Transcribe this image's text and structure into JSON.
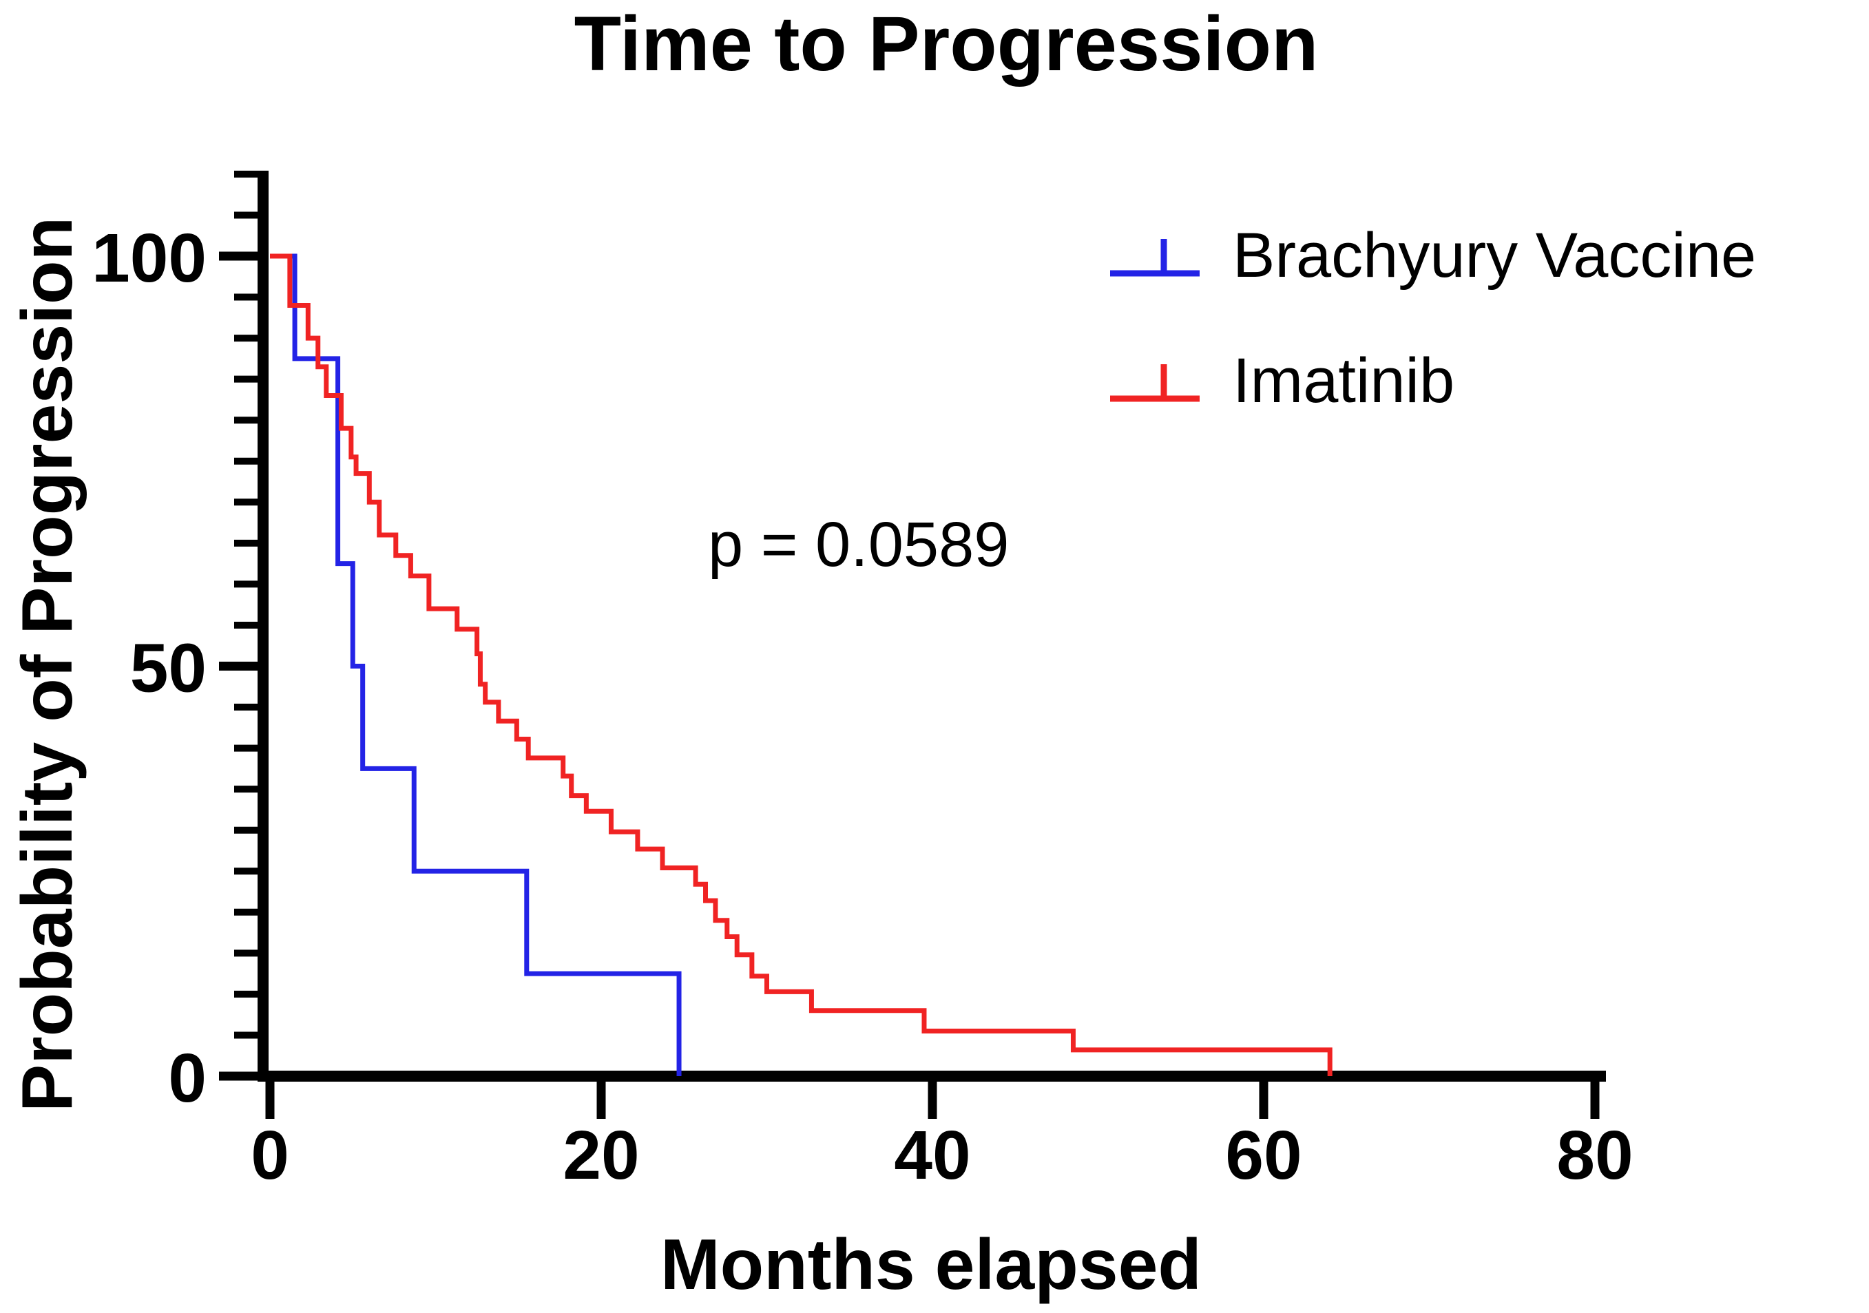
{
  "page": {
    "background": "#FFFFFF",
    "axis_color": "#000000"
  },
  "chart_data": {
    "type": "line",
    "subtype": "kaplan-meier-step",
    "title": "Time to Progression",
    "xlabel": "Months elapsed",
    "ylabel": "Probability of Progression",
    "annotation": "p = 0.0589",
    "xlim": [
      0,
      80
    ],
    "ylim": [
      0,
      100
    ],
    "x_ticks": [
      0,
      20,
      40,
      60,
      80
    ],
    "y_ticks": [
      0,
      50,
      100
    ],
    "y_minor_step": 5,
    "y_axis_top_value": 110,
    "grid": false,
    "legend_position": "top-right",
    "series": [
      {
        "name": "Brachyury Vaccine",
        "color": "#2323E6",
        "steps": [
          [
            0,
            100
          ],
          [
            1.5,
            87.5
          ],
          [
            4.1,
            62.5
          ],
          [
            5.0,
            50
          ],
          [
            5.6,
            37.5
          ],
          [
            8.7,
            25
          ],
          [
            15.5,
            12.5
          ],
          [
            24.7,
            0
          ]
        ]
      },
      {
        "name": "Imatinib",
        "color": "#F02323",
        "steps": [
          [
            0,
            100
          ],
          [
            1.2,
            94
          ],
          [
            2.3,
            90
          ],
          [
            2.9,
            86.5
          ],
          [
            3.4,
            83
          ],
          [
            4.3,
            79
          ],
          [
            4.9,
            75.5
          ],
          [
            5.2,
            73.5
          ],
          [
            6.0,
            70
          ],
          [
            6.6,
            66
          ],
          [
            7.6,
            63.5
          ],
          [
            8.5,
            61
          ],
          [
            9.6,
            57
          ],
          [
            11.3,
            54.5
          ],
          [
            12.5,
            51.5
          ],
          [
            12.7,
            47.8
          ],
          [
            13.0,
            45.6
          ],
          [
            13.8,
            43.3
          ],
          [
            14.9,
            41.1
          ],
          [
            15.6,
            38.8
          ],
          [
            17.7,
            36.6
          ],
          [
            18.2,
            34.2
          ],
          [
            19.1,
            32.3
          ],
          [
            20.6,
            29.8
          ],
          [
            22.2,
            27.7
          ],
          [
            23.7,
            25.4
          ],
          [
            25.7,
            23.4
          ],
          [
            26.3,
            21.4
          ],
          [
            26.9,
            19.0
          ],
          [
            27.6,
            17.0
          ],
          [
            28.2,
            14.8
          ],
          [
            29.1,
            12.2
          ],
          [
            30.0,
            10.3
          ],
          [
            32.7,
            8.0
          ],
          [
            39.5,
            5.5
          ],
          [
            48.5,
            3.2
          ],
          [
            64,
            0
          ]
        ]
      }
    ]
  }
}
